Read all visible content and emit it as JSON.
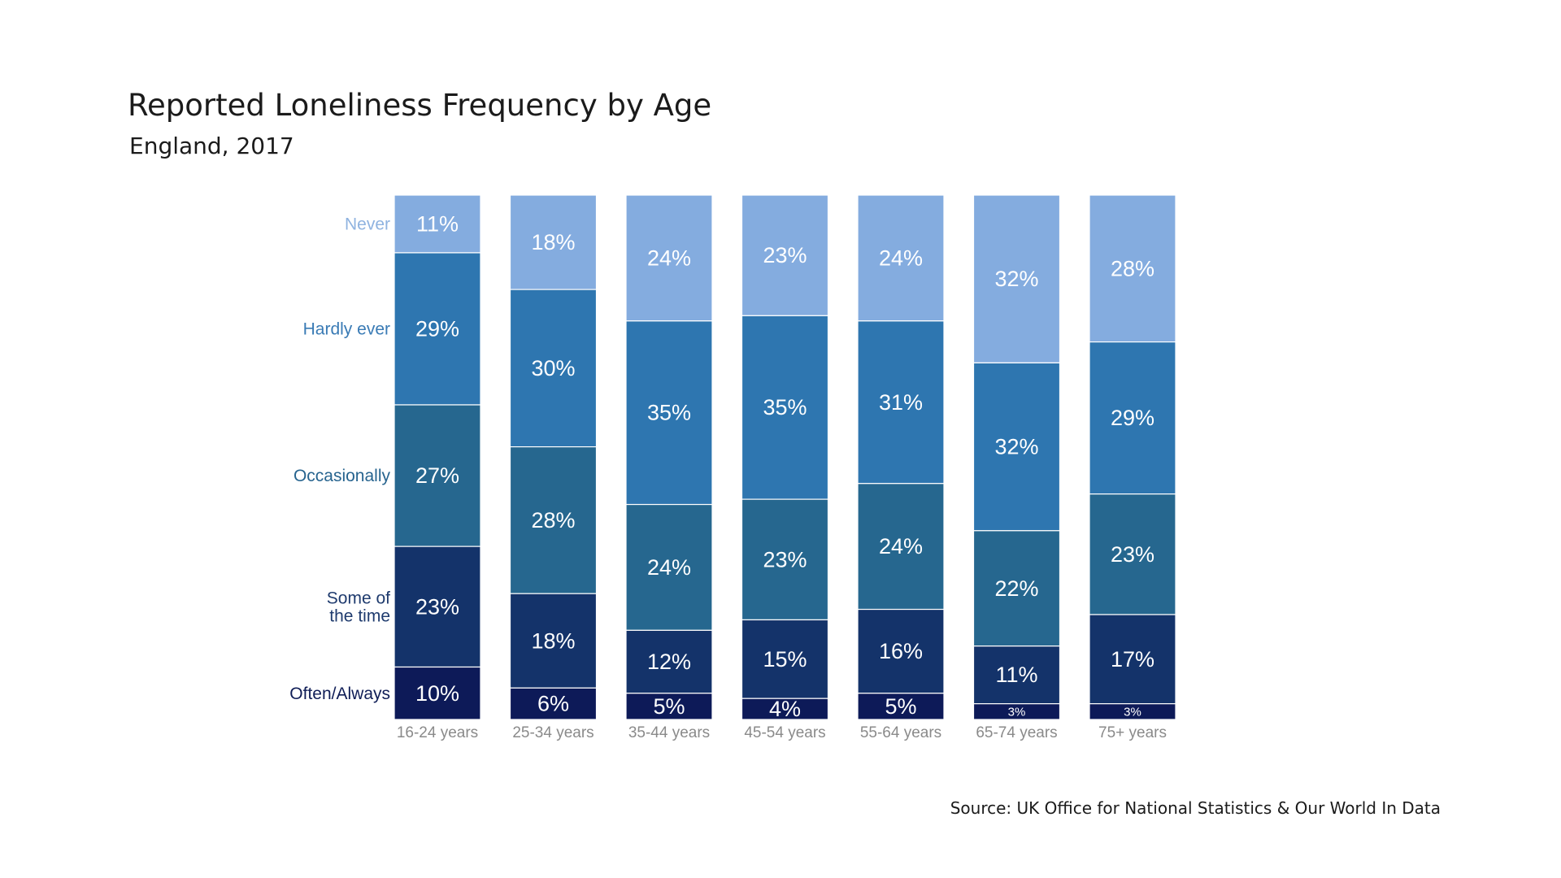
{
  "title": "Reported Loneliness Frequency by Age",
  "subtitle": "England, 2017",
  "source": "Source:  UK Office for National Statistics & Our World In Data",
  "colors": {
    "Never": "#84acdf",
    "Hardly ever": "#2e76b0",
    "Occasionally": "#26678f",
    "Some of the time": "#14336a",
    "Often/Always": "#0d1a58",
    "legend_never": "#8fb3e0",
    "legend_hardly": "#3a7bb5",
    "legend_occasionally": "#27648f",
    "legend_some": "#1f3b6e",
    "legend_often": "#0f1d56"
  },
  "chart_data": {
    "type": "bar",
    "stacked": true,
    "normalized": true,
    "categories": [
      "16-24 years",
      "25-34 years",
      "35-44 years",
      "45-54 years",
      "55-64 years",
      "65-74 years",
      "75+ years"
    ],
    "series": [
      {
        "name": "Never",
        "values": [
          11,
          18,
          24,
          23,
          24,
          32,
          28
        ],
        "labels": [
          "11%",
          "18%",
          "24%",
          "23%",
          "24%",
          "32%",
          "28%"
        ]
      },
      {
        "name": "Hardly ever",
        "values": [
          29,
          30,
          35,
          35,
          31,
          32,
          29
        ],
        "labels": [
          "29%",
          "30%",
          "35%",
          "35%",
          "31%",
          "32%",
          "29%"
        ]
      },
      {
        "name": "Occasionally",
        "values": [
          27,
          28,
          24,
          23,
          24,
          22,
          23
        ],
        "labels": [
          "27%",
          "28%",
          "24%",
          "23%",
          "24%",
          "22%",
          "23%"
        ]
      },
      {
        "name": "Some of the time",
        "values": [
          23,
          18,
          12,
          15,
          16,
          11,
          17
        ],
        "labels": [
          "23%",
          "18%",
          "12%",
          "15%",
          "16%",
          "11%",
          "17%"
        ]
      },
      {
        "name": "Often/Always",
        "values": [
          10,
          6,
          5,
          4,
          5,
          3,
          3
        ],
        "labels": [
          "10%",
          "6%",
          "5%",
          "4%",
          "5%",
          "3%",
          "3%"
        ]
      }
    ],
    "legend": [
      {
        "series": "Never",
        "lines": [
          "Never"
        ]
      },
      {
        "series": "Hardly ever",
        "lines": [
          "Hardly ever"
        ]
      },
      {
        "series": "Occasionally",
        "lines": [
          "Occasionally"
        ]
      },
      {
        "series": "Some of the time",
        "lines": [
          "Some of",
          "the time"
        ]
      },
      {
        "series": "Often/Always",
        "lines": [
          "Often/Always"
        ]
      }
    ],
    "legend_placement": "left",
    "grid": false,
    "ylim": [
      0,
      100
    ]
  }
}
